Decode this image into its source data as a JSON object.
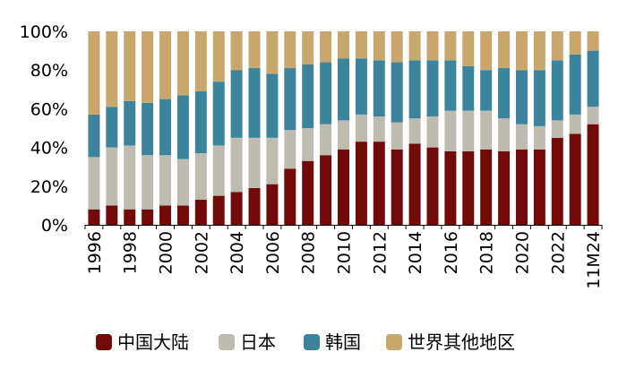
{
  "chart_data": {
    "type": "bar",
    "stacked": true,
    "categories": [
      "1996",
      "1997",
      "1998",
      "1999",
      "2000",
      "2001",
      "2002",
      "2003",
      "2004",
      "2005",
      "2006",
      "2007",
      "2008",
      "2009",
      "2010",
      "2011",
      "2012",
      "2013",
      "2014",
      "2015",
      "2016",
      "2017",
      "2018",
      "2019",
      "2020",
      "2021",
      "2022",
      "2023",
      "11M24"
    ],
    "x_tick_labels": [
      "1996",
      "",
      "1998",
      "",
      "2000",
      "",
      "2002",
      "",
      "2004",
      "",
      "2006",
      "",
      "2008",
      "",
      "2010",
      "",
      "2012",
      "",
      "2014",
      "",
      "2016",
      "",
      "2018",
      "",
      "2020",
      "",
      "2022",
      "",
      "11M24"
    ],
    "series": [
      {
        "name": "中国大陆",
        "color": "#720a0a",
        "values": [
          8,
          10,
          8,
          8,
          10,
          10,
          13,
          15,
          17,
          19,
          21,
          29,
          33,
          36,
          39,
          43,
          43,
          39,
          42,
          40,
          38,
          38,
          39,
          38,
          39,
          39,
          45,
          47,
          52
        ]
      },
      {
        "name": "日本",
        "color": "#bebcb1",
        "values": [
          27,
          30,
          33,
          28,
          26,
          24,
          24,
          26,
          28,
          26,
          24,
          20,
          17,
          16,
          15,
          14,
          13,
          14,
          13,
          16,
          21,
          21,
          20,
          17,
          13,
          12,
          9,
          10,
          9
        ]
      },
      {
        "name": "韩国",
        "color": "#3b849c",
        "values": [
          22,
          21,
          23,
          27,
          29,
          33,
          32,
          33,
          35,
          36,
          33,
          32,
          33,
          32,
          32,
          29,
          29,
          31,
          30,
          29,
          26,
          23,
          21,
          26,
          28,
          29,
          31,
          31,
          29
        ]
      },
      {
        "name": "世界其他地区",
        "color": "#c8a66c",
        "values": [
          43,
          39,
          36,
          37,
          35,
          33,
          31,
          26,
          20,
          19,
          22,
          19,
          17,
          16,
          14,
          14,
          15,
          16,
          15,
          15,
          15,
          18,
          20,
          19,
          20,
          20,
          15,
          12,
          10
        ]
      }
    ],
    "y_ticks": [
      0,
      20,
      40,
      60,
      80,
      100
    ],
    "y_tick_labels": [
      "0%",
      "20%",
      "40%",
      "60%",
      "80%",
      "100%"
    ],
    "ylim": [
      0,
      100
    ],
    "title": "",
    "xlabel": "",
    "ylabel": "",
    "legend_position": "bottom"
  }
}
